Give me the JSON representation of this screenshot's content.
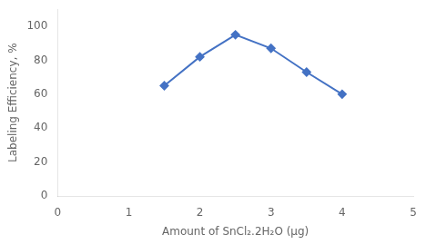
{
  "chart_data": {
    "type": "line",
    "x": [
      1.5,
      2.0,
      2.5,
      3.0,
      3.5,
      4.0
    ],
    "values": [
      65,
      82,
      95,
      87,
      73,
      60
    ],
    "color": "#4472C4",
    "marker": "diamond",
    "xlim": [
      0,
      5
    ],
    "ylim": [
      0,
      110
    ],
    "xticks": [
      0,
      1,
      2,
      3,
      4,
      5
    ],
    "yticks": [
      0,
      20,
      40,
      60,
      80,
      100
    ],
    "xlabel": "Amount of SnCl₂.2H₂O (μg)",
    "ylabel": "Labeling Efficiency, %",
    "grid": false
  }
}
